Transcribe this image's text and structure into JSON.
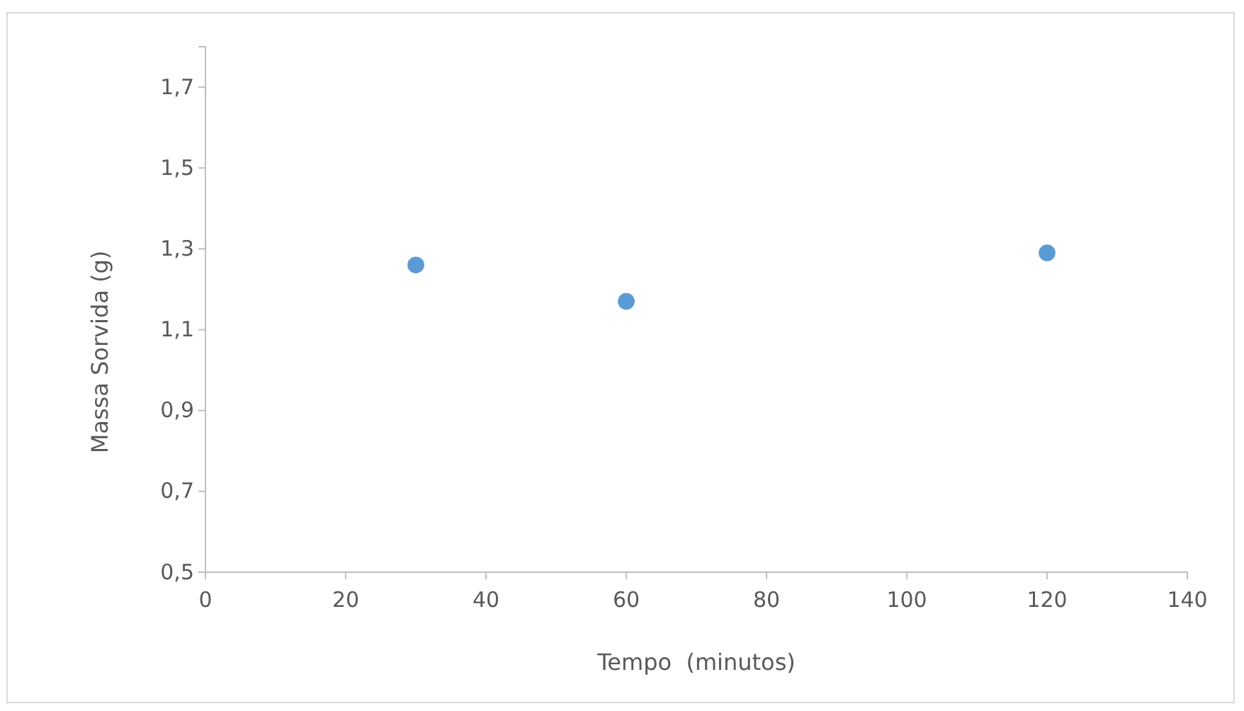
{
  "chart_data": {
    "type": "scatter",
    "xlabel": "Tempo  (minutos)",
    "ylabel": "Massa Sorvida (g)",
    "x": [
      30,
      60,
      120
    ],
    "series": [
      {
        "color": "#5b9bd5",
        "values": [
          1.26,
          1.17,
          1.29
        ]
      }
    ],
    "xlim": [
      0,
      140
    ],
    "xticks": [
      0,
      20,
      40,
      60,
      80,
      100,
      120,
      140
    ],
    "ylim": [
      0.5,
      1.8
    ],
    "yticks": [
      {
        "value": 0.5,
        "label": "0,5"
      },
      {
        "value": 0.7,
        "label": "0,7"
      },
      {
        "value": 0.9,
        "label": "0,9"
      },
      {
        "value": 1.1,
        "label": "1,1"
      },
      {
        "value": 1.3,
        "label": "1,3"
      },
      {
        "value": 1.5,
        "label": "1,5"
      },
      {
        "value": 1.7,
        "label": "1,7"
      }
    ],
    "grid": false,
    "marker": "circle"
  }
}
